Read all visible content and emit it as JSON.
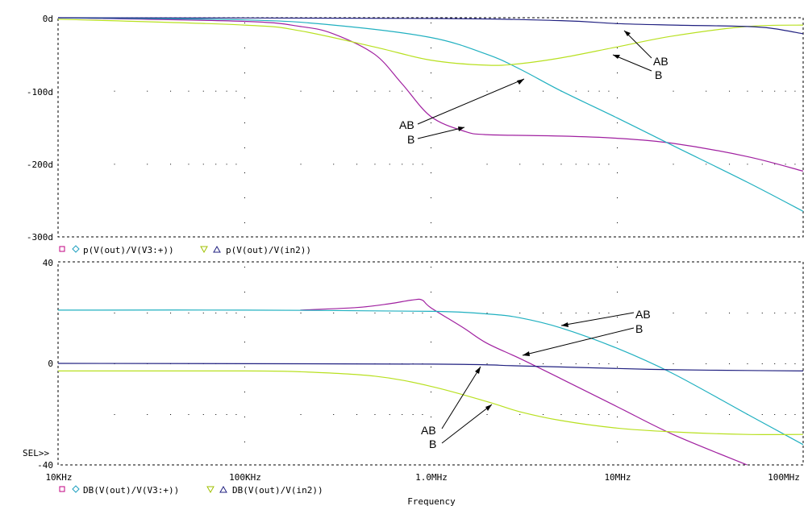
{
  "colors": {
    "magenta": "#a020a0",
    "cyan": "#20b0c0",
    "yellow": "#b8e020",
    "navy": "#202080",
    "legend_square": "#c00080",
    "legend_diamond": "#20a0c0",
    "legend_tri_down": "#a0c000",
    "legend_tri_up": "#202080"
  },
  "chart_data": [
    {
      "type": "line",
      "id": "phase",
      "x_scale": "log",
      "xlim": [
        10000,
        100000000
      ],
      "ylim": [
        -300,
        0
      ],
      "y_ticks": [
        "0d",
        "-100d",
        "-200d",
        "-300d"
      ],
      "legend": {
        "expr1": "p(V(out)/V(V3:+))",
        "expr2": "p(V(out)/V(in2))"
      },
      "series": [
        {
          "color_key": "magenta",
          "points": [
            [
              10000,
              0
            ],
            [
              100000,
              -5
            ],
            [
              200000,
              -12
            ],
            [
              300000,
              -22
            ],
            [
              500000,
              -50
            ],
            [
              700000,
              -90
            ],
            [
              1000000,
              -135
            ],
            [
              1500000,
              -155
            ],
            [
              2000000,
              -160
            ],
            [
              5000000,
              -162
            ],
            [
              10000000,
              -165
            ],
            [
              20000000,
              -172
            ],
            [
              50000000,
              -190
            ],
            [
              100000000,
              -210
            ]
          ]
        },
        {
          "color_key": "cyan",
          "points": [
            [
              10000,
              0
            ],
            [
              100000,
              -3
            ],
            [
              300000,
              -10
            ],
            [
              1000000,
              -27
            ],
            [
              2000000,
              -50
            ],
            [
              3000000,
              -70
            ],
            [
              5000000,
              -100
            ],
            [
              10000000,
              -137
            ],
            [
              20000000,
              -175
            ],
            [
              50000000,
              -225
            ],
            [
              100000000,
              -265
            ]
          ]
        },
        {
          "color_key": "yellow",
          "points": [
            [
              10000,
              -2
            ],
            [
              100000,
              -10
            ],
            [
              200000,
              -18
            ],
            [
              500000,
              -40
            ],
            [
              1000000,
              -58
            ],
            [
              2000000,
              -65
            ],
            [
              3000000,
              -63
            ],
            [
              5000000,
              -55
            ],
            [
              10000000,
              -40
            ],
            [
              20000000,
              -25
            ],
            [
              50000000,
              -12
            ],
            [
              100000000,
              -10
            ]
          ]
        },
        {
          "color_key": "navy",
          "points": [
            [
              10000,
              0
            ],
            [
              1000000,
              -1
            ],
            [
              5000000,
              -4
            ],
            [
              10000000,
              -8
            ],
            [
              20000000,
              -10
            ],
            [
              50000000,
              -12
            ],
            [
              70000000,
              -15
            ],
            [
              100000000,
              -22
            ]
          ]
        }
      ],
      "annotations": [
        {
          "text": "AB"
        },
        {
          "text": "B"
        },
        {
          "text": "AB"
        },
        {
          "text": "B"
        }
      ]
    },
    {
      "type": "line",
      "id": "magnitude",
      "x_scale": "log",
      "xlim": [
        10000,
        100000000
      ],
      "ylim": [
        -40,
        40
      ],
      "y_ticks": [
        "40",
        "0",
        "-40"
      ],
      "x_ticks": [
        "10KHz",
        "100KHz",
        "1.0MHz",
        "10MHz",
        "100MHz"
      ],
      "xlabel": "Frequency",
      "legend": {
        "expr1": "DB(V(out)/V(V3:+))",
        "expr2": "DB(V(out)/V(in2))"
      },
      "series": [
        {
          "color_key": "magenta",
          "points": [
            [
              200000,
              21
            ],
            [
              400000,
              22
            ],
            [
              600000,
              23.5
            ],
            [
              800000,
              25
            ],
            [
              900000,
              25
            ],
            [
              1000000,
              22
            ],
            [
              1500000,
              14
            ],
            [
              2000000,
              8
            ],
            [
              3000000,
              2
            ],
            [
              5000000,
              -6
            ],
            [
              10000000,
              -17
            ],
            [
              20000000,
              -28
            ],
            [
              50000000,
              -40
            ]
          ]
        },
        {
          "color_key": "cyan",
          "points": [
            [
              10000,
              21
            ],
            [
              100000,
              21
            ],
            [
              1000000,
              20.5
            ],
            [
              2000000,
              19.5
            ],
            [
              3000000,
              18
            ],
            [
              5000000,
              14
            ],
            [
              10000000,
              6
            ],
            [
              20000000,
              -4
            ],
            [
              50000000,
              -20
            ],
            [
              100000000,
              -32
            ]
          ]
        },
        {
          "color_key": "yellow",
          "points": [
            [
              10000,
              -3
            ],
            [
              100000,
              -3
            ],
            [
              200000,
              -3.3
            ],
            [
              500000,
              -5
            ],
            [
              1000000,
              -9
            ],
            [
              2000000,
              -15
            ],
            [
              3000000,
              -19
            ],
            [
              5000000,
              -22.5
            ],
            [
              10000000,
              -25.5
            ],
            [
              20000000,
              -27
            ],
            [
              50000000,
              -28
            ],
            [
              100000000,
              -28
            ]
          ]
        },
        {
          "color_key": "navy",
          "points": [
            [
              10000,
              0
            ],
            [
              1000000,
              -0.3
            ],
            [
              3000000,
              -1
            ],
            [
              10000000,
              -2
            ],
            [
              20000000,
              -2.5
            ],
            [
              50000000,
              -2.8
            ],
            [
              100000000,
              -3
            ]
          ]
        }
      ],
      "annotations": [
        {
          "text": "AB"
        },
        {
          "text": "B"
        },
        {
          "text": "AB"
        },
        {
          "text": "B"
        }
      ]
    }
  ],
  "selector": "SEL>>"
}
